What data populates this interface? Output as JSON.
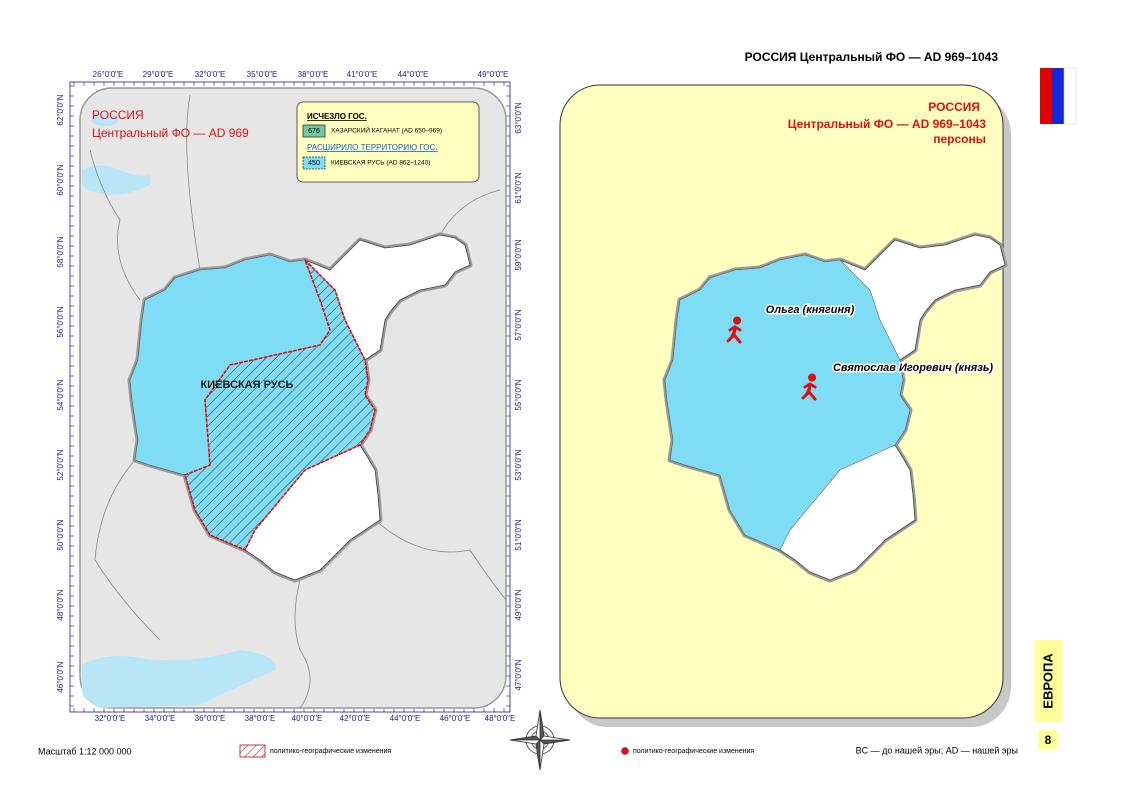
{
  "header": {
    "title": "РОССИЯ Центральный ФО — AD 969–1043"
  },
  "left_map": {
    "title": "РОССИЯ",
    "subtitle": "Центральный ФО — AD 969",
    "region_label": "КИЕВСКАЯ РУСЬ",
    "legend": {
      "disappeared_heading": "ИСЧЕЗЛО ГОС.",
      "disappeared": [
        {
          "code": "676",
          "label": "ХАЗАРСКИЙ КАГАНАТ (AD 650–969)"
        }
      ],
      "expanded_heading": "РАСШИРИЛО ТЕРРИТОРИЮ ГОС.",
      "expanded": [
        {
          "code": "450",
          "label": "КИЕВСКАЯ РУСЬ (AD 862–1240)"
        }
      ]
    },
    "top_labels": [
      "26°0'0\"E",
      "29°0'0\"E",
      "32°0'0\"E",
      "35°0'0\"E",
      "38°0'0\"E",
      "41°0'0\"E",
      "44°0'0\"E",
      "49°0'0\"E"
    ],
    "bottom_labels": [
      "32°0'0\"E",
      "34°0'0\"E",
      "36°0'0\"E",
      "38°0'0\"E",
      "40°0'0\"E",
      "42°0'0\"E",
      "44°0'0\"E",
      "46°0'0\"E",
      "48°0'0\"E"
    ],
    "left_labels": [
      "62°0'0\"N",
      "60°0'0\"N",
      "58°0'0\"N",
      "56°0'0\"N",
      "54°0'0\"N",
      "52°0'0\"N",
      "50°0'0\"N",
      "48°0'0\"N",
      "46°0'0\"N"
    ],
    "right_labels": [
      "63°0'0\"N",
      "61°0'0\"N",
      "59°0'0\"N",
      "57°0'0\"N",
      "55°0'0\"N",
      "53°0'0\"N",
      "51°0'0\"N",
      "49°0'0\"N",
      "47°0'0\"N"
    ]
  },
  "right_map": {
    "title": "РОССИЯ",
    "subtitle": "Центральный ФО — AD 969–1043",
    "caption": "персоны",
    "persons": [
      "Ольга (княгиня)",
      "Святослав Игоревич (князь)"
    ]
  },
  "sidebar": {
    "region": "ЕВРОПА",
    "page": "8"
  },
  "footer": {
    "scale": "Масштаб 1:12 000 000",
    "hatch_legend": "политико-географические изменения",
    "dot_legend": "политико-географические изменения",
    "era_note": "BC — до нашей эры; AD — нашей эры"
  }
}
